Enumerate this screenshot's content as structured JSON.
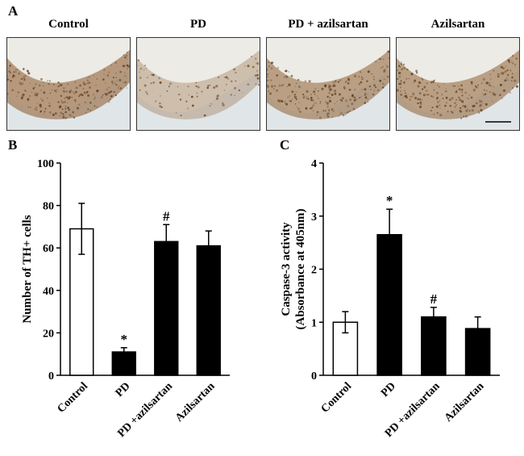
{
  "panels": {
    "a": "A",
    "b": "B",
    "c": "C"
  },
  "micrographs": [
    {
      "label": "Control",
      "stain": 0.9
    },
    {
      "label": "PD",
      "stain": 0.35
    },
    {
      "label": "PD + azilsartan",
      "stain": 0.85
    },
    {
      "label": "Azilsartan",
      "stain": 0.85
    }
  ],
  "colors": {
    "bar_control": "#ffffff",
    "bar_treated": "#000000",
    "stain": "#8b5a2b",
    "tissue_bg": "#ecebe6"
  },
  "chart_data": [
    {
      "type": "bar",
      "panel": "B",
      "categories": [
        "Control",
        "PD",
        "PD +azilsartan",
        "Azilsartan"
      ],
      "values": [
        69,
        11,
        63,
        61
      ],
      "errors": [
        12,
        2,
        8,
        7
      ],
      "fills": [
        "white",
        "black",
        "black",
        "black"
      ],
      "annotations": [
        "",
        "*",
        "#",
        ""
      ],
      "xlabel": "",
      "ylabel": "Number of TH+ cells",
      "ylim": [
        0,
        100
      ],
      "yticks": [
        0,
        20,
        40,
        60,
        80,
        100
      ]
    },
    {
      "type": "bar",
      "panel": "C",
      "categories": [
        "Control",
        "PD",
        "PD +azilsartan",
        "Azilsartan"
      ],
      "values": [
        1.0,
        2.65,
        1.1,
        0.88
      ],
      "errors": [
        0.2,
        0.48,
        0.18,
        0.22
      ],
      "fills": [
        "white",
        "black",
        "black",
        "black"
      ],
      "annotations": [
        "",
        "*",
        "#",
        ""
      ],
      "xlabel": "",
      "ylabel": [
        "Caspase-3 activity",
        "(Absorbance  at 405nm)"
      ],
      "ylim": [
        0,
        4
      ],
      "yticks": [
        0,
        1,
        2,
        3,
        4
      ]
    }
  ]
}
